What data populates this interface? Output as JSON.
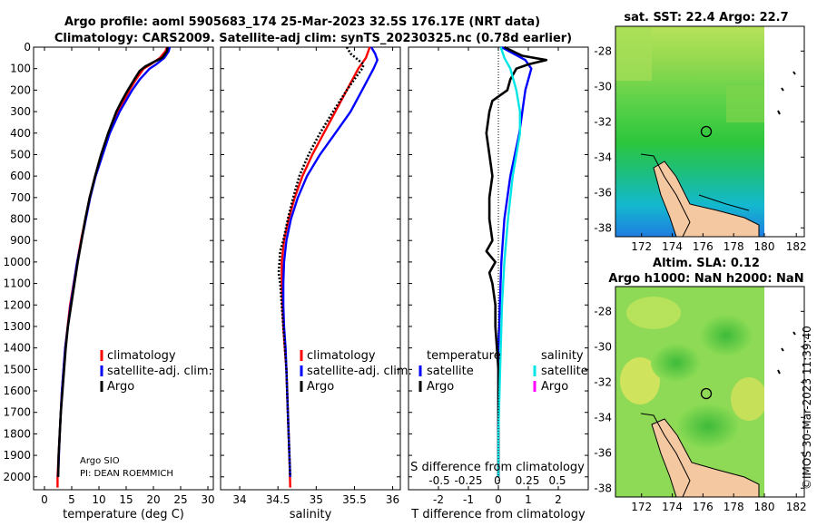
{
  "title_line1": "Argo profile: aoml 5905683_174 25-Mar-2023 32.5S 176.17E (NRT data)",
  "title_line2": "Climatology: CARS2009. Satellite-adj clim: synTS_20230325.nc (0.78d earlier)",
  "credit_line1": "Argo SIO",
  "credit_line2": "PI: DEAN ROEMMICH",
  "timestamp": "©IMOS 30-Mar-2023 11:39:40",
  "colors": {
    "climatology": "#ff0000",
    "satellite": "#0000ff",
    "argo": "#000000",
    "sat_diff": "#00e5e5",
    "argo_sal": "#ff00ff"
  },
  "chart_data": [
    {
      "id": "temperature",
      "type": "line",
      "xlabel": "temperature (deg C)",
      "ylabel": "",
      "xlim": [
        -2,
        31
      ],
      "ylim": [
        2060,
        0
      ],
      "xticks": [
        0,
        5,
        10,
        15,
        20,
        25,
        30
      ],
      "xtick_labels": [
        "0",
        "5",
        "10",
        "15",
        "20",
        "25",
        "30"
      ],
      "yticks": [
        0,
        100,
        200,
        300,
        400,
        500,
        600,
        700,
        800,
        900,
        1000,
        1100,
        1200,
        1300,
        1400,
        1500,
        1600,
        1700,
        1800,
        1900,
        2000
      ],
      "ytick_labels": [
        "0",
        "100",
        "200",
        "300",
        "400",
        "500",
        "600",
        "700",
        "800",
        "900",
        "1000",
        "1100",
        "1200",
        "1300",
        "1400",
        "1500",
        "1600",
        "1700",
        "1800",
        "1900",
        "2000"
      ],
      "legend": [
        "climatology",
        "satellite-adj. clim.",
        "Argo"
      ],
      "series": [
        {
          "name": "climatology",
          "color": "#ff0000",
          "depth": [
            0,
            20,
            50,
            80,
            100,
            150,
            200,
            300,
            400,
            500,
            600,
            700,
            800,
            900,
            1000,
            1200,
            1400,
            1600,
            1800,
            2000,
            2050
          ],
          "values": [
            22.5,
            22.2,
            21.2,
            19.5,
            18.2,
            16.8,
            15.6,
            13.5,
            11.8,
            10.6,
            9.3,
            8.3,
            7.5,
            6.7,
            6.0,
            4.7,
            3.8,
            3.2,
            2.8,
            2.4,
            2.4
          ]
        },
        {
          "name": "satellite-adj. clim.",
          "color": "#0000ff",
          "depth": [
            0,
            20,
            50,
            80,
            100,
            150,
            200,
            300,
            400,
            500,
            600,
            700,
            800,
            900,
            1000,
            1200,
            1400,
            1600,
            1800,
            2000
          ],
          "values": [
            23.0,
            22.8,
            22.0,
            20.5,
            19.3,
            17.5,
            16.1,
            13.8,
            12.0,
            10.7,
            9.4,
            8.4,
            7.6,
            6.8,
            6.0,
            4.8,
            3.8,
            3.2,
            2.8,
            2.5
          ]
        },
        {
          "name": "Argo",
          "color": "#000000",
          "depth": [
            0,
            20,
            50,
            70,
            90,
            110,
            150,
            200,
            250,
            300,
            400,
            500,
            600,
            700,
            800,
            900,
            1000,
            1100,
            1200,
            1300,
            1400,
            1500,
            1600,
            1700,
            1800,
            1900,
            2000
          ],
          "values": [
            22.6,
            22.5,
            21.6,
            20.0,
            18.5,
            17.5,
            16.5,
            15.3,
            14.2,
            13.2,
            11.7,
            10.4,
            9.3,
            8.3,
            7.5,
            6.8,
            6.1,
            5.5,
            4.9,
            4.3,
            3.9,
            3.6,
            3.3,
            3.0,
            2.8,
            2.6,
            2.5
          ]
        }
      ]
    },
    {
      "id": "salinity",
      "type": "line",
      "xlabel": "salinity",
      "xlim": [
        33.75,
        36.1
      ],
      "ylim": [
        2060,
        0
      ],
      "xticks": [
        34,
        34.5,
        35,
        35.5,
        36
      ],
      "xtick_labels": [
        "34",
        "34.5",
        "35",
        "35.5",
        "36"
      ],
      "legend": [
        "climatology",
        "satellite-adj. clim.",
        "Argo"
      ],
      "series": [
        {
          "name": "climatology",
          "color": "#ff0000",
          "depth": [
            0,
            50,
            100,
            200,
            300,
            400,
            500,
            600,
            700,
            800,
            900,
            1000,
            1100,
            1200,
            1300,
            1400,
            1500,
            1700,
            1900,
            2050
          ],
          "values": [
            35.7,
            35.65,
            35.55,
            35.4,
            35.25,
            35.1,
            34.95,
            34.82,
            34.72,
            34.64,
            34.58,
            34.55,
            34.55,
            34.56,
            34.57,
            34.59,
            34.61,
            34.63,
            34.65,
            34.66
          ]
        },
        {
          "name": "satellite-adj. clim.",
          "color": "#0000ff",
          "depth": [
            0,
            30,
            60,
            100,
            200,
            300,
            400,
            500,
            600,
            700,
            800,
            900,
            1000,
            1100,
            1200,
            1300,
            1400,
            1500,
            1700,
            1900,
            2000
          ],
          "values": [
            35.72,
            35.77,
            35.8,
            35.75,
            35.6,
            35.45,
            35.25,
            35.05,
            34.88,
            34.76,
            34.67,
            34.61,
            34.58,
            34.57,
            34.57,
            34.58,
            34.6,
            34.61,
            34.63,
            34.65,
            34.66
          ]
        },
        {
          "name": "Argo",
          "color": "#000000",
          "depth": [
            0,
            30,
            60,
            80,
            100,
            150,
            200,
            300,
            400,
            500,
            600,
            700,
            800,
            900,
            950,
            1000,
            1050,
            1100,
            1200,
            1300,
            1400,
            1500,
            1700,
            1900,
            2000
          ],
          "values": [
            35.4,
            35.45,
            35.55,
            35.62,
            35.6,
            35.5,
            35.4,
            35.22,
            35.05,
            34.9,
            34.78,
            34.7,
            34.63,
            34.57,
            34.53,
            34.52,
            34.51,
            34.53,
            34.55,
            34.57,
            34.59,
            34.61,
            34.63,
            34.65,
            34.66
          ]
        }
      ]
    },
    {
      "id": "differences",
      "type": "line",
      "xlabel": "T difference from climatology",
      "s_axis_label": "S difference from climatology",
      "xlim": [
        -3,
        3
      ],
      "ylim": [
        2060,
        0
      ],
      "xticks": [
        -2,
        -1,
        0,
        1,
        2
      ],
      "xtick_labels": [
        "-2",
        "-1",
        "0",
        "1",
        "2"
      ],
      "s_xtick_labels": [
        "-0.5",
        "-0.25",
        "0",
        "0.25",
        "0.5"
      ],
      "legend_headers": [
        "temperature",
        "salinity"
      ],
      "legend_left": [
        "satellite",
        "Argo"
      ],
      "legend_right": [
        "satellite",
        "Argo"
      ],
      "series": [
        {
          "name": "temperature satellite",
          "color": "#0000ff",
          "depth": [
            0,
            30,
            60,
            100,
            150,
            200,
            300,
            400,
            600,
            800,
            1000,
            1200,
            1400,
            1600,
            1800,
            2000
          ],
          "values": [
            0.1,
            0.5,
            0.9,
            1.1,
            1.0,
            0.9,
            0.8,
            0.7,
            0.4,
            0.2,
            0.1,
            0.05,
            0.0,
            0.0,
            0.0,
            0.0
          ]
        },
        {
          "name": "temperature Argo",
          "color": "#000000",
          "depth": [
            0,
            40,
            60,
            80,
            100,
            150,
            200,
            250,
            300,
            400,
            500,
            600,
            700,
            800,
            900,
            950,
            1000,
            1050,
            1100,
            1200,
            1300,
            1400,
            1500,
            1700,
            1900,
            2000
          ],
          "values": [
            0.2,
            0.8,
            1.6,
            1.0,
            0.6,
            0.4,
            0.3,
            -0.2,
            -0.3,
            -0.4,
            -0.3,
            -0.2,
            -0.3,
            -0.3,
            -0.2,
            -0.4,
            -0.1,
            -0.3,
            -0.2,
            -0.1,
            -0.1,
            -0.05,
            0.0,
            0.0,
            0.0,
            0.0
          ]
        },
        {
          "name": "salinity satellite",
          "color": "#00e5e5",
          "depth": [
            0,
            50,
            100,
            200,
            300,
            400,
            500,
            600,
            800,
            1000,
            1200,
            1400,
            1600,
            1800,
            2000
          ],
          "values": [
            0.02,
            0.05,
            0.1,
            0.15,
            0.18,
            0.18,
            0.15,
            0.12,
            0.08,
            0.05,
            0.03,
            0.02,
            0.01,
            0.0,
            0.0
          ]
        }
      ]
    },
    {
      "id": "sst_map",
      "type": "heatmap",
      "title": "sat. SST: 22.4 Argo: 22.7",
      "xlim": [
        170.3,
        182.5
      ],
      "ylim": [
        -38.5,
        -26.6
      ],
      "xticks": [
        172,
        174,
        176,
        178,
        180,
        182
      ],
      "yticks": [
        -28,
        -30,
        -32,
        -34,
        -36,
        -38
      ],
      "marker": [
        176.17,
        -32.5
      ]
    },
    {
      "id": "sla_map",
      "type": "heatmap",
      "title_line1": "Altim. SLA: 0.12",
      "title_line2": "Argo h1000: NaN h2000: NaN",
      "xlim": [
        170.3,
        182.5
      ],
      "ylim": [
        -38.5,
        -26.6
      ],
      "xticks": [
        172,
        174,
        176,
        178,
        180,
        182
      ],
      "yticks": [
        -28,
        -30,
        -32,
        -34,
        -36,
        -38
      ],
      "marker": [
        176.17,
        -32.5
      ]
    }
  ]
}
